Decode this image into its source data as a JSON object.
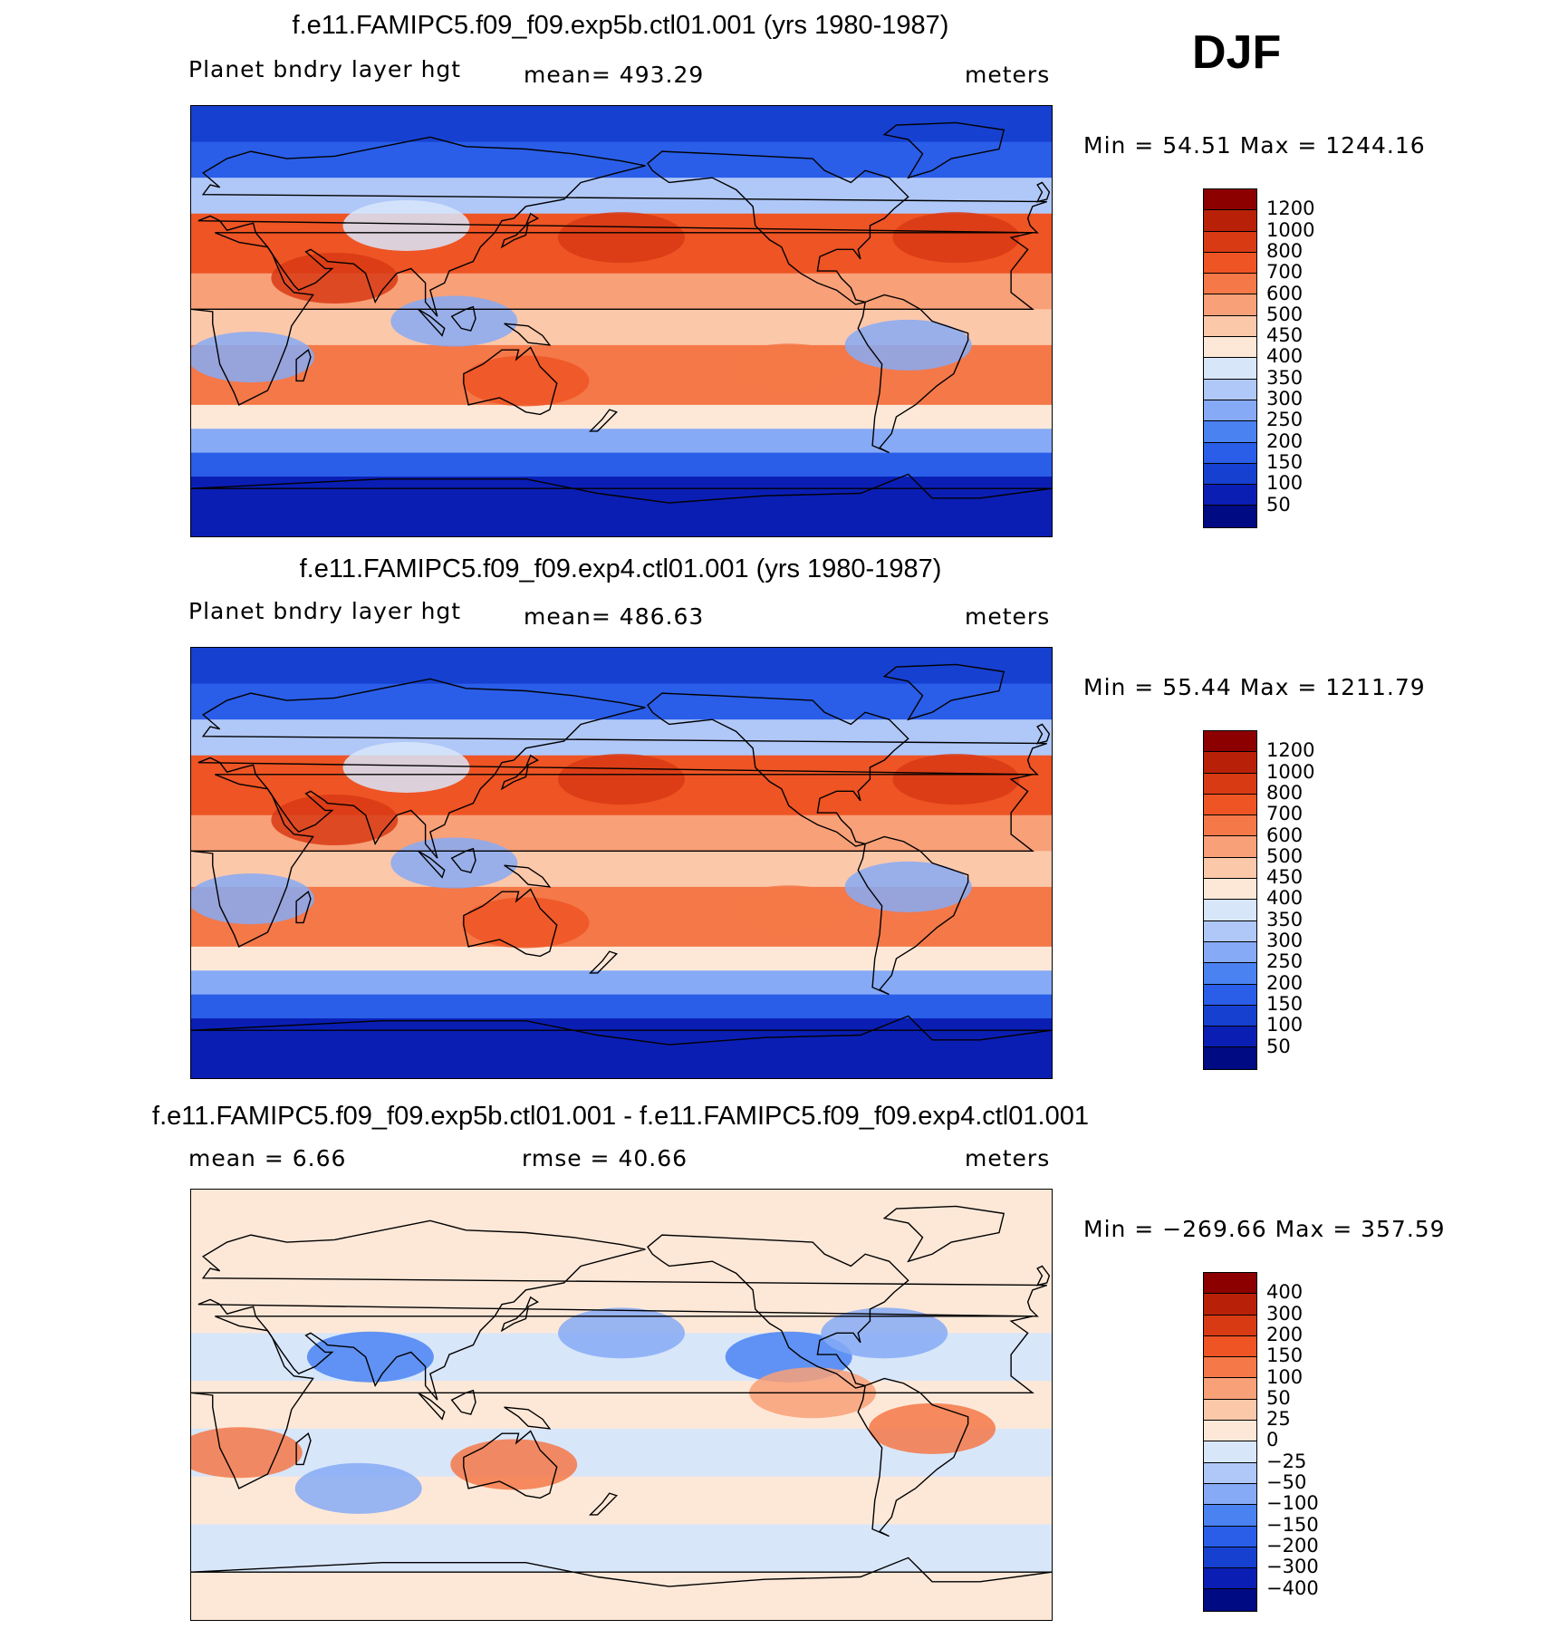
{
  "season": "DJF",
  "colors": {
    "abs_scale": [
      "#000a82",
      "#0a1eb4",
      "#1640d0",
      "#2a5ee8",
      "#4a82f2",
      "#86aaf6",
      "#b0c8f8",
      "#d8e6fa",
      "#fde8d8",
      "#fcc8aa",
      "#f8a078",
      "#f47848",
      "#ee5424",
      "#d83a14",
      "#b82008",
      "#8c0000"
    ],
    "diff_scale": [
      "#000a82",
      "#0a1eb4",
      "#1640d0",
      "#2a5ee8",
      "#4a82f2",
      "#86aaf6",
      "#b0c8f8",
      "#d8e6fa",
      "#fde8d8",
      "#fcc8aa",
      "#f8a078",
      "#f47848",
      "#ee5424",
      "#d83a14",
      "#b82008",
      "#8c0000"
    ]
  },
  "panels": [
    {
      "title": "f.e11.FAMIPC5.f09_f09.exp5b.ctl01.001 (yrs 1980-1987)",
      "left_label": "Planet bndry layer hgt",
      "center_label": "mean=  493.29",
      "right_label": "meters",
      "minmax": "Min =   54.51  Max  =  1244.16",
      "colorbar_labels": [
        "1200",
        "1000",
        "800",
        "700",
        "600",
        "500",
        "450",
        "400",
        "350",
        "300",
        "250",
        "200",
        "150",
        "100",
        "50"
      ]
    },
    {
      "title": "f.e11.FAMIPC5.f09_f09.exp4.ctl01.001 (yrs 1980-1987)",
      "left_label": "Planet bndry layer hgt",
      "center_label": "mean=  486.63",
      "right_label": "meters",
      "minmax": "Min =   55.44  Max  =  1211.79",
      "colorbar_labels": [
        "1200",
        "1000",
        "800",
        "700",
        "600",
        "500",
        "450",
        "400",
        "350",
        "300",
        "250",
        "200",
        "150",
        "100",
        "50"
      ]
    },
    {
      "title": "f.e11.FAMIPC5.f09_f09.exp5b.ctl01.001 - f.e11.FAMIPC5.f09_f09.exp4.ctl01.001",
      "left_label": "mean  =     6.66",
      "center_label": "rmse  =    40.66",
      "right_label": "meters",
      "minmax": "Min  = −269.66  Max  =  357.59",
      "colorbar_labels": [
        "400",
        "300",
        "200",
        "150",
        "100",
        "50",
        "25",
        "0",
        "−25",
        "−50",
        "−100",
        "−150",
        "−200",
        "−300",
        "−400"
      ]
    }
  ]
}
